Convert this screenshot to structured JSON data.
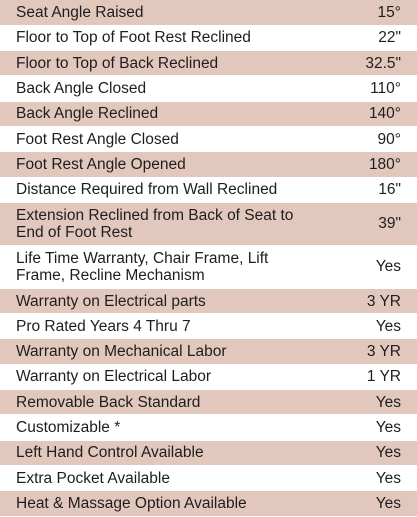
{
  "specs": [
    {
      "label": "Seat Angle Raised",
      "value": "15°"
    },
    {
      "label": "Floor to Top of Foot Rest Reclined",
      "value": "22\""
    },
    {
      "label": "Floor to Top of Back Reclined",
      "value": "32.5\""
    },
    {
      "label": "Back Angle Closed",
      "value": "110°"
    },
    {
      "label": "Back Angle Reclined",
      "value": "140°"
    },
    {
      "label": "Foot Rest Angle Closed",
      "value": "90°"
    },
    {
      "label": "Foot Rest Angle Opened",
      "value": "180°"
    },
    {
      "label": "Distance Required from Wall Reclined",
      "value": "16\""
    },
    {
      "label": "Extension Reclined from Back of Seat to End of Foot Rest",
      "value": "39\""
    },
    {
      "label": "Life Time Warranty, Chair Frame, Lift Frame, Recline Mechanism",
      "value": "Yes"
    },
    {
      "label": "Warranty on Electrical parts",
      "value": "3 YR"
    },
    {
      "label": "Pro Rated Years 4 Thru 7",
      "value": "Yes"
    },
    {
      "label": "Warranty on Mechanical Labor",
      "value": "3 YR"
    },
    {
      "label": "Warranty on Electrical Labor",
      "value": "1 YR"
    },
    {
      "label": "Removable Back Standard",
      "value": "Yes"
    },
    {
      "label": "Customizable *",
      "value": "Yes"
    },
    {
      "label": "Left Hand Control Available",
      "value": "Yes"
    },
    {
      "label": "Extra Pocket Available",
      "value": "Yes"
    },
    {
      "label": "Heat & Massage Option Available",
      "value": "Yes"
    }
  ],
  "colors": {
    "shaded_row": "#e2c7bd",
    "plain_row": "#ffffff",
    "text": "#1e1e1e"
  }
}
